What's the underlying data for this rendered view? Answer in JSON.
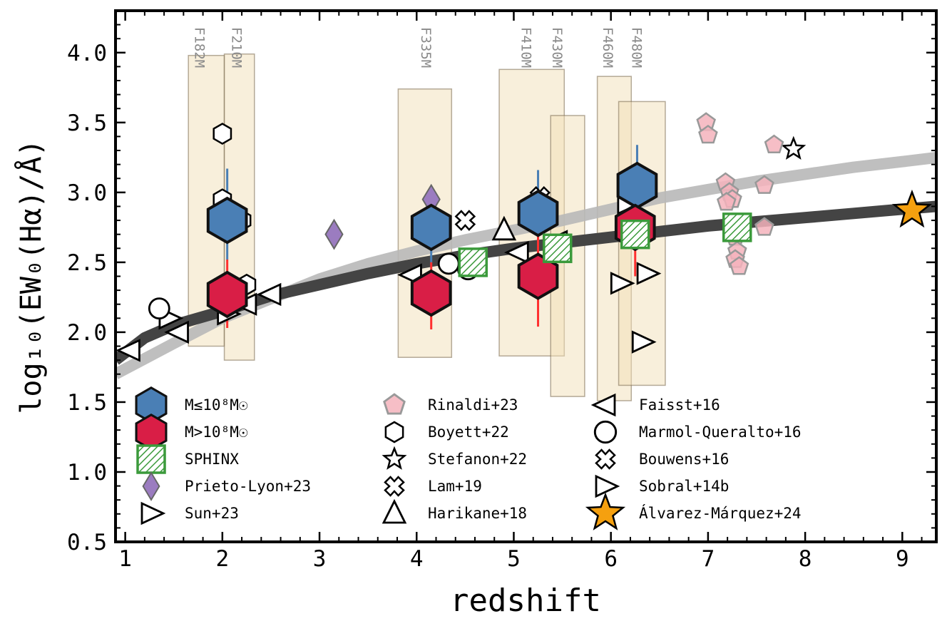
{
  "chart_data": {
    "type": "scatter",
    "xlabel": "redshift",
    "ylabel": "log₁₀(EW₀(Hα)/Å)",
    "xlim": [
      0.9,
      9.35
    ],
    "ylim": [
      0.5,
      4.3
    ],
    "x_ticks": [
      1,
      2,
      3,
      4,
      5,
      6,
      7,
      8,
      9
    ],
    "y_ticks": [
      0.5,
      1.0,
      1.5,
      2.0,
      2.5,
      3.0,
      3.5,
      4.0
    ],
    "x_tick_labels": [
      "1",
      "2",
      "3",
      "4",
      "5",
      "6",
      "7",
      "8",
      "9"
    ],
    "y_tick_labels": [
      "0.5",
      "1.0",
      "1.5",
      "2.0",
      "2.5",
      "3.0",
      "3.5",
      "4.0"
    ],
    "filters": [
      {
        "name": "F182M",
        "x_range": [
          1.65,
          2.02
        ],
        "y_range": [
          1.9,
          3.98
        ]
      },
      {
        "name": "F210M",
        "x_range": [
          2.02,
          2.33
        ],
        "y_range": [
          1.8,
          3.99
        ]
      },
      {
        "name": "F335M",
        "x_range": [
          3.81,
          4.36
        ],
        "y_range": [
          1.82,
          3.74
        ]
      },
      {
        "name": "F410M",
        "x_range": [
          4.85,
          5.52
        ],
        "y_range": [
          1.83,
          3.88
        ]
      },
      {
        "name": "F430M",
        "x_range": [
          5.38,
          5.73
        ],
        "y_range": [
          1.54,
          3.55
        ]
      },
      {
        "name": "F460M",
        "x_range": [
          5.86,
          6.21
        ],
        "y_range": [
          1.51,
          3.83
        ]
      },
      {
        "name": "F480M",
        "x_range": [
          6.08,
          6.56
        ],
        "y_range": [
          1.62,
          3.65
        ]
      }
    ],
    "trends": [
      {
        "name": "light-trend",
        "color": "#b8b8b8",
        "points": [
          [
            0.9,
            1.7
          ],
          [
            1.5,
            1.92
          ],
          [
            2,
            2.1
          ],
          [
            2.5,
            2.24
          ],
          [
            3,
            2.38
          ],
          [
            3.5,
            2.49
          ],
          [
            4,
            2.58
          ],
          [
            4.5,
            2.66
          ],
          [
            5,
            2.73
          ],
          [
            5.5,
            2.8
          ],
          [
            6,
            2.88
          ],
          [
            6.5,
            2.96
          ],
          [
            7,
            3.02
          ],
          [
            7.5,
            3.08
          ],
          [
            8,
            3.13
          ],
          [
            8.5,
            3.18
          ],
          [
            9,
            3.22
          ],
          [
            9.35,
            3.25
          ]
        ]
      },
      {
        "name": "dark-trend",
        "color": "#444444",
        "points": [
          [
            0.9,
            1.8
          ],
          [
            1.2,
            1.96
          ],
          [
            1.5,
            2.05
          ],
          [
            2,
            2.15
          ],
          [
            2.5,
            2.26
          ],
          [
            3,
            2.34
          ],
          [
            3.5,
            2.42
          ],
          [
            4,
            2.49
          ],
          [
            4.5,
            2.55
          ],
          [
            5,
            2.6
          ],
          [
            5.5,
            2.64
          ],
          [
            6,
            2.68
          ],
          [
            6.5,
            2.72
          ],
          [
            7,
            2.76
          ],
          [
            7.5,
            2.79
          ],
          [
            8,
            2.82
          ],
          [
            8.5,
            2.85
          ],
          [
            9,
            2.88
          ],
          [
            9.35,
            2.9
          ]
        ]
      }
    ],
    "series": [
      {
        "name": "M≤10⁸M☉",
        "marker": "hexagon",
        "color": "#4a7fb5",
        "err_color": "#4a7fb5",
        "points": [
          {
            "x": 2.05,
            "y": 2.8,
            "ylo": 2.52,
            "yhi": 3.17
          },
          {
            "x": 4.15,
            "y": 2.75,
            "ylo": 2.5,
            "yhi": 2.93
          },
          {
            "x": 5.25,
            "y": 2.85,
            "ylo": 2.62,
            "yhi": 3.16
          },
          {
            "x": 6.27,
            "y": 3.05,
            "ylo": 2.88,
            "yhi": 3.34
          }
        ]
      },
      {
        "name": "M>10⁸M☉",
        "marker": "hexagon",
        "color": "#d91e46",
        "err_color": "#ff3030",
        "points": [
          {
            "x": 2.05,
            "y": 2.27,
            "ylo": 2.03,
            "yhi": 2.52
          },
          {
            "x": 4.15,
            "y": 2.28,
            "ylo": 2.02,
            "yhi": 2.5
          },
          {
            "x": 5.25,
            "y": 2.4,
            "ylo": 2.04,
            "yhi": 2.7
          },
          {
            "x": 6.25,
            "y": 2.75,
            "ylo": 2.4,
            "yhi": 2.97
          }
        ]
      },
      {
        "name": "SPHINX",
        "marker": "square-hatched",
        "color": "#3b9a3b",
        "points": [
          {
            "x": 4.58,
            "y": 2.5
          },
          {
            "x": 5.45,
            "y": 2.6
          },
          {
            "x": 6.25,
            "y": 2.7
          },
          {
            "x": 7.3,
            "y": 2.75
          }
        ]
      },
      {
        "name": "Prieto-Lyon+23",
        "marker": "diamond",
        "color": "#9b7cc0",
        "points": [
          {
            "x": 3.15,
            "y": 2.7
          },
          {
            "x": 4.15,
            "y": 2.95
          }
        ]
      },
      {
        "name": "Sun+23",
        "marker": "triangle-right",
        "color": "#ffffff",
        "points": [
          {
            "x": 6.17,
            "y": 2.92
          },
          {
            "x": 6.37,
            "y": 2.42
          },
          {
            "x": 6.1,
            "y": 2.35
          },
          {
            "x": 6.32,
            "y": 1.93
          },
          {
            "x": 2.05,
            "y": 2.13
          }
        ]
      },
      {
        "name": "Rinaldi+23",
        "marker": "pentagon",
        "color": "#f4b3bc",
        "points": [
          {
            "x": 6.98,
            "y": 3.5
          },
          {
            "x": 7.0,
            "y": 3.41
          },
          {
            "x": 7.68,
            "y": 3.34
          },
          {
            "x": 7.58,
            "y": 3.05
          },
          {
            "x": 7.18,
            "y": 3.07
          },
          {
            "x": 7.22,
            "y": 3.0
          },
          {
            "x": 7.25,
            "y": 2.95
          },
          {
            "x": 7.19,
            "y": 2.93
          },
          {
            "x": 7.58,
            "y": 2.75
          },
          {
            "x": 7.28,
            "y": 2.68
          },
          {
            "x": 7.3,
            "y": 2.58
          },
          {
            "x": 7.28,
            "y": 2.52
          },
          {
            "x": 7.32,
            "y": 2.47
          }
        ]
      },
      {
        "name": "Boyett+22",
        "marker": "hexagon-open",
        "color": "#ffffff",
        "points": [
          {
            "x": 2.0,
            "y": 3.42
          },
          {
            "x": 2.0,
            "y": 2.95
          },
          {
            "x": 2.2,
            "y": 2.8
          },
          {
            "x": 2.25,
            "y": 2.34
          }
        ]
      },
      {
        "name": "Stefanon+22",
        "marker": "star",
        "color": "#ffffff",
        "points": [
          {
            "x": 7.88,
            "y": 3.31
          }
        ]
      },
      {
        "name": "Lam+19",
        "marker": "cross",
        "color": "#ffffff",
        "points": [
          {
            "x": 4.5,
            "y": 2.8
          }
        ]
      },
      {
        "name": "Harikane+18",
        "marker": "triangle-up",
        "color": "#ffffff",
        "points": [
          {
            "x": 4.9,
            "y": 2.73
          }
        ]
      },
      {
        "name": "Faisst+16",
        "marker": "triangle-left",
        "color": "#ffffff",
        "points": [
          {
            "x": 1.05,
            "y": 1.87
          },
          {
            "x": 1.55,
            "y": 2.0
          },
          {
            "x": 2.5,
            "y": 2.27
          },
          {
            "x": 3.95,
            "y": 2.41
          },
          {
            "x": 5.05,
            "y": 2.57
          },
          {
            "x": 5.45,
            "y": 2.65
          },
          {
            "x": 2.25,
            "y": 2.2
          }
        ]
      },
      {
        "name": "Marmol-Queralto+16",
        "marker": "circle",
        "color": "#ffffff",
        "points": [
          {
            "x": 1.35,
            "y": 2.17
          },
          {
            "x": 4.33,
            "y": 2.49
          },
          {
            "x": 4.53,
            "y": 2.45
          }
        ]
      },
      {
        "name": "Bouwens+16",
        "marker": "cross",
        "color": "#ffffff",
        "points": [
          {
            "x": 5.27,
            "y": 2.97
          }
        ]
      },
      {
        "name": "Sobral+14b",
        "marker": "triangle-right",
        "color": "#ffffff",
        "points": [
          {
            "x": 1.45,
            "y": 2.1
          }
        ]
      },
      {
        "name": "Álvarez-Márquez+24",
        "marker": "star-big",
        "color": "#f5a00f",
        "points": [
          {
            "x": 9.1,
            "y": 2.87
          }
        ]
      }
    ],
    "legend": {
      "placement": "lower-left",
      "columns": [
        [
          "M≤10⁸M☉",
          "M>10⁸M☉",
          "SPHINX",
          "Prieto-Lyon+23",
          "Sun+23"
        ],
        [
          "Rinaldi+23",
          "Boyett+22",
          "Stefanon+22",
          "Lam+19",
          "Harikane+18"
        ],
        [
          "Faisst+16",
          "Marmol-Queralto+16",
          "Bouwens+16",
          "Sobral+14b",
          "Álvarez-Márquez+24"
        ]
      ]
    }
  }
}
